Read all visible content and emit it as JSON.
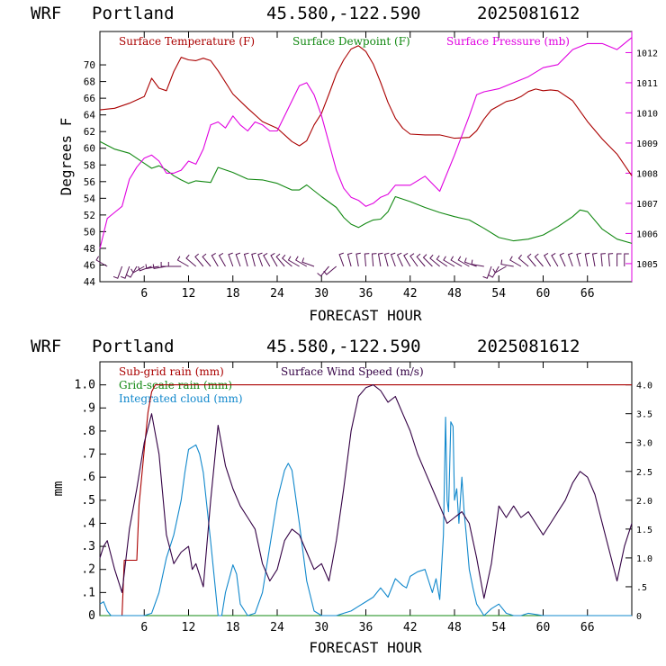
{
  "header": {
    "model": "WRF",
    "location": "Portland",
    "coords": "45.580,-122.590",
    "init": "2025081612"
  },
  "colors": {
    "temperature": "#aa0000",
    "dewpoint": "#118811",
    "pressure": "#e000e0",
    "wind_barbs": "#551155",
    "subgrid_rain": "#aa0000",
    "gridscale_rain": "#118811",
    "cloud": "#1188cc",
    "wind_speed": "#330044"
  },
  "chart_data": [
    {
      "type": "line",
      "title": "",
      "xlabel": "FORECAST HOUR",
      "ylabel": "Degrees F",
      "xlim": [
        0,
        72
      ],
      "ylim": [
        44,
        74
      ],
      "y2lim": [
        1004.4,
        1012.7
      ],
      "xticks": [
        "6",
        "12",
        "18",
        "24",
        "30",
        "36",
        "42",
        "48",
        "54",
        "60",
        "66"
      ],
      "yticks": [
        "44",
        "46",
        "48",
        "50",
        "52",
        "54",
        "56",
        "58",
        "60",
        "62",
        "64",
        "66",
        "68",
        "70"
      ],
      "y2ticks": [
        "1005",
        "1006",
        "1007",
        "1008",
        "1009",
        "1010",
        "1011",
        "1012"
      ],
      "series": [
        {
          "name": "Surface Temperature (F)",
          "axis": "left",
          "x": [
            0,
            2,
            4,
            6,
            7,
            8,
            9,
            10,
            11,
            12,
            13,
            14,
            15,
            16,
            18,
            20,
            22,
            24,
            26,
            27,
            28,
            29,
            30,
            31,
            32,
            33,
            34,
            35,
            36,
            37,
            38,
            39,
            40,
            41,
            42,
            44,
            46,
            48,
            50,
            51,
            52,
            53,
            54,
            55,
            56,
            57,
            58,
            59,
            60,
            61,
            62,
            64,
            66,
            68,
            70,
            72
          ],
          "y": [
            64.6,
            64.8,
            65.4,
            66.2,
            68.4,
            67.2,
            66.9,
            69.2,
            70.9,
            70.6,
            70.5,
            70.8,
            70.5,
            69.3,
            66.5,
            64.8,
            63.2,
            62.4,
            60.8,
            60.3,
            60.9,
            62.8,
            64.2,
            66.5,
            68.9,
            70.6,
            71.9,
            72.3,
            71.6,
            70.1,
            67.9,
            65.5,
            63.6,
            62.4,
            61.7,
            61.6,
            61.6,
            61.2,
            61.3,
            62.1,
            63.5,
            64.6,
            65.1,
            65.6,
            65.8,
            66.2,
            66.8,
            67.1,
            66.9,
            67.0,
            66.9,
            65.7,
            63.2,
            61.1,
            59.3,
            56.7
          ]
        },
        {
          "name": "Surface Dewpoint (F)",
          "axis": "left",
          "x": [
            0,
            2,
            4,
            6,
            7,
            8,
            9,
            10,
            11,
            12,
            13,
            14,
            15,
            16,
            18,
            20,
            22,
            24,
            26,
            27,
            28,
            30,
            32,
            33,
            34,
            35,
            36,
            37,
            38,
            39,
            40,
            42,
            44,
            46,
            48,
            50,
            52,
            54,
            56,
            58,
            60,
            62,
            64,
            65,
            66,
            68,
            70,
            72
          ],
          "y": [
            60.8,
            59.9,
            59.4,
            58.2,
            57.6,
            57.9,
            57.4,
            56.7,
            56.2,
            55.8,
            56.1,
            56.0,
            55.9,
            57.7,
            57.1,
            56.3,
            56.2,
            55.8,
            55.0,
            55.0,
            55.6,
            54.2,
            52.9,
            51.7,
            50.9,
            50.5,
            51.0,
            51.4,
            51.5,
            52.4,
            54.2,
            53.6,
            52.9,
            52.3,
            51.8,
            51.4,
            50.4,
            49.3,
            48.9,
            49.1,
            49.6,
            50.6,
            51.8,
            52.6,
            52.4,
            50.3,
            49.1,
            48.6
          ]
        },
        {
          "name": "Surface Pressure (mb)",
          "axis": "right",
          "x": [
            0,
            1,
            2,
            3,
            4,
            5,
            6,
            7,
            8,
            9,
            10,
            11,
            12,
            13,
            14,
            15,
            16,
            17,
            18,
            19,
            20,
            21,
            22,
            23,
            24,
            25,
            26,
            27,
            28,
            29,
            30,
            31,
            32,
            33,
            34,
            35,
            36,
            37,
            38,
            39,
            40,
            42,
            44,
            46,
            48,
            50,
            51,
            52,
            54,
            56,
            58,
            60,
            62,
            64,
            66,
            68,
            70,
            72
          ],
          "y": [
            1005.5,
            1006.5,
            1006.7,
            1006.9,
            1007.8,
            1008.2,
            1008.5,
            1008.6,
            1008.4,
            1008.0,
            1008.0,
            1008.1,
            1008.4,
            1008.3,
            1008.8,
            1009.6,
            1009.7,
            1009.5,
            1009.9,
            1009.6,
            1009.4,
            1009.7,
            1009.6,
            1009.4,
            1009.4,
            1009.9,
            1010.4,
            1010.9,
            1011.0,
            1010.6,
            1009.9,
            1009.0,
            1008.1,
            1007.5,
            1007.2,
            1007.1,
            1006.9,
            1007.0,
            1007.2,
            1007.3,
            1007.6,
            1007.6,
            1007.9,
            1007.4,
            1008.6,
            1009.9,
            1010.6,
            1010.7,
            1010.8,
            1011.0,
            1011.2,
            1011.5,
            1011.6,
            1012.1,
            1012.3,
            1012.3,
            1012.1,
            1012.5
          ]
        }
      ],
      "wind_barbs": {
        "x": [
          1,
          3,
          4,
          5,
          6,
          7,
          8,
          9,
          10,
          11,
          12,
          13,
          14,
          15,
          16,
          17,
          18,
          19,
          20,
          21,
          22,
          23,
          24,
          25,
          26,
          27,
          28,
          29,
          31,
          32,
          33,
          34,
          35,
          36,
          37,
          38,
          39,
          40,
          41,
          42,
          43,
          44,
          45,
          46,
          47,
          48,
          49,
          50,
          51,
          52,
          53,
          54,
          55,
          56,
          57,
          58,
          59,
          60,
          61,
          62,
          63,
          64,
          65,
          66,
          67,
          68,
          69,
          70,
          71
        ],
        "dir_deg": [
          300,
          200,
          200,
          210,
          240,
          250,
          260,
          260,
          270,
          270,
          300,
          310,
          320,
          320,
          330,
          330,
          340,
          340,
          345,
          345,
          340,
          330,
          330,
          320,
          310,
          300,
          300,
          290,
          220,
          230,
          340,
          345,
          350,
          355,
          355,
          350,
          345,
          340,
          335,
          330,
          325,
          320,
          315,
          310,
          305,
          300,
          300,
          300,
          290,
          280,
          200,
          210,
          240,
          280,
          300,
          310,
          320,
          320,
          330,
          330,
          335,
          340,
          345,
          350,
          350,
          355,
          355,
          0,
          0
        ]
      },
      "legend": [
        "Surface Temperature (F)",
        "Surface Dewpoint (F)",
        "Surface Pressure (mb)"
      ],
      "legend_position": "top"
    },
    {
      "type": "line",
      "title": "",
      "xlabel": "FORECAST HOUR",
      "ylabel": "mm",
      "xlim": [
        0,
        72
      ],
      "ylim": [
        0,
        1.1
      ],
      "y2lim": [
        0,
        4.4
      ],
      "xticks": [
        "6",
        "12",
        "18",
        "24",
        "30",
        "36",
        "42",
        "48",
        "54",
        "60",
        "66"
      ],
      "yticks": [
        "0",
        ".1",
        ".2",
        ".3",
        ".4",
        ".5",
        ".6",
        ".7",
        ".8",
        ".9",
        "1.0"
      ],
      "y2ticks": [
        "0",
        ".5",
        "1.0",
        "1.5",
        "2.0",
        "2.5",
        "3.0",
        "3.5",
        "4.0"
      ],
      "series": [
        {
          "name": "Sub-grid rain (mm)",
          "axis": "left",
          "x": [
            0,
            3,
            3.3,
            5,
            5.3,
            6,
            6.5,
            7,
            7.5,
            8,
            72
          ],
          "y": [
            0,
            0,
            0.24,
            0.24,
            0.48,
            0.72,
            0.88,
            0.97,
            1.0,
            1.0,
            1.0
          ]
        },
        {
          "name": "Grid-scale rain (mm)",
          "axis": "left",
          "x": [
            0,
            72
          ],
          "y": [
            0,
            0
          ]
        },
        {
          "name": "Integrated cloud (mm)",
          "axis": "left",
          "x": [
            0,
            0.5,
            1,
            1.5,
            2,
            3,
            4,
            5,
            6,
            7,
            8,
            9,
            10,
            11,
            11.5,
            12,
            13,
            13.5,
            14,
            15,
            16,
            16.5,
            17,
            18,
            18.5,
            19,
            20,
            21,
            22,
            23,
            24,
            25,
            25.5,
            26,
            27,
            28,
            29,
            30,
            31,
            32,
            33,
            34,
            35,
            36,
            37,
            38,
            39,
            40,
            41,
            41.5,
            42,
            43,
            44,
            44.5,
            45,
            45.5,
            46,
            46.5,
            46.8,
            47,
            47.2,
            47.5,
            47.8,
            48,
            48.3,
            48.6,
            49,
            49.3,
            49.6,
            50,
            50.5,
            51,
            52,
            53,
            54,
            55,
            56,
            57,
            58,
            60,
            62,
            64,
            72
          ],
          "y": [
            0.05,
            0.06,
            0.02,
            0.0,
            0.0,
            0.0,
            0.0,
            0.0,
            0.0,
            0.01,
            0.1,
            0.25,
            0.35,
            0.5,
            0.62,
            0.72,
            0.74,
            0.7,
            0.62,
            0.32,
            0.0,
            0.0,
            0.1,
            0.22,
            0.18,
            0.05,
            0.0,
            0.01,
            0.1,
            0.3,
            0.5,
            0.63,
            0.66,
            0.63,
            0.4,
            0.15,
            0.02,
            0.0,
            0.0,
            0.0,
            0.01,
            0.02,
            0.04,
            0.06,
            0.08,
            0.12,
            0.08,
            0.16,
            0.13,
            0.12,
            0.17,
            0.19,
            0.2,
            0.15,
            0.1,
            0.16,
            0.07,
            0.35,
            0.86,
            0.5,
            0.45,
            0.84,
            0.82,
            0.5,
            0.55,
            0.4,
            0.6,
            0.45,
            0.35,
            0.2,
            0.12,
            0.05,
            0.0,
            0.03,
            0.05,
            0.01,
            0.0,
            0.0,
            0.01,
            0.0,
            0.0,
            0.0,
            0.0
          ]
        },
        {
          "name": "Surface Wind Speed (m/s)",
          "axis": "right",
          "x": [
            0,
            0.5,
            1,
            2,
            3,
            4,
            5,
            6,
            7,
            8,
            9,
            10,
            11,
            12,
            12.5,
            13,
            13.5,
            14,
            15,
            16,
            17,
            18,
            19,
            20,
            21,
            22,
            23,
            24,
            25,
            26,
            27,
            28,
            29,
            30,
            31,
            32,
            33,
            34,
            35,
            36,
            37,
            38,
            39,
            40,
            41,
            42,
            43,
            44,
            45,
            46,
            47,
            48,
            49,
            50,
            51,
            52,
            53,
            54,
            55,
            56,
            57,
            58,
            59,
            60,
            61,
            62,
            63,
            64,
            65,
            66,
            67,
            68,
            69,
            70,
            71,
            72
          ],
          "y": [
            1.0,
            1.2,
            1.3,
            0.8,
            0.4,
            1.5,
            2.2,
            3.0,
            3.5,
            2.8,
            1.4,
            0.9,
            1.1,
            1.2,
            0.8,
            0.9,
            0.7,
            0.5,
            2.0,
            3.3,
            2.6,
            2.2,
            1.9,
            1.7,
            1.5,
            0.9,
            0.6,
            0.8,
            1.3,
            1.5,
            1.4,
            1.1,
            0.8,
            0.9,
            0.6,
            1.3,
            2.2,
            3.2,
            3.8,
            3.95,
            4.0,
            3.9,
            3.7,
            3.8,
            3.5,
            3.2,
            2.8,
            2.5,
            2.2,
            1.9,
            1.6,
            1.7,
            1.8,
            1.6,
            1.0,
            0.3,
            0.9,
            1.9,
            1.7,
            1.9,
            1.7,
            1.8,
            1.6,
            1.4,
            1.6,
            1.8,
            2.0,
            2.3,
            2.5,
            2.4,
            2.1,
            1.6,
            1.1,
            0.6,
            1.2,
            1.6
          ]
        }
      ],
      "legend": [
        "Sub-grid rain (mm)",
        "Surface Wind Speed (m/s)",
        "Grid-scale rain (mm)",
        "Integrated cloud (mm)"
      ],
      "legend_position": "top-left"
    }
  ]
}
